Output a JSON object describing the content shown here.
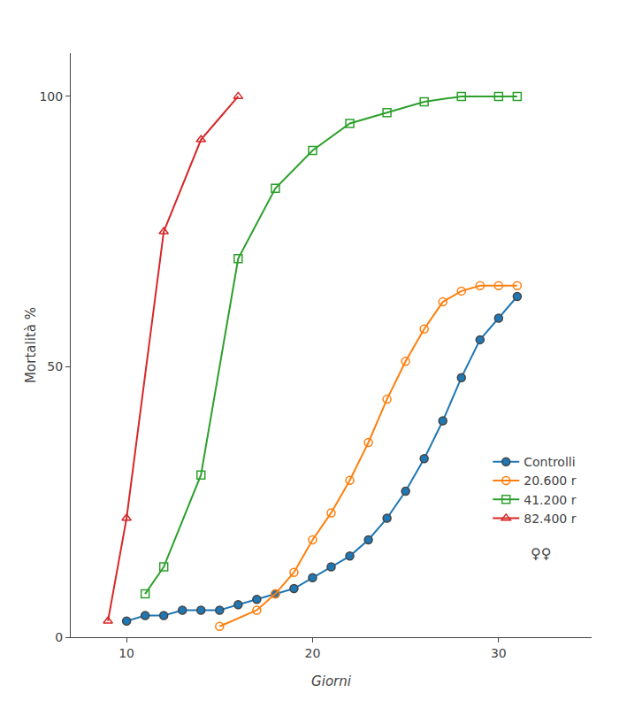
{
  "chart_data": {
    "type": "line",
    "xlabel": "Giorni",
    "ylabel": "Mortalità %",
    "xlim": [
      7,
      35
    ],
    "ylim": [
      0,
      108
    ],
    "xticks": [
      10,
      20,
      30
    ],
    "yticks": [
      0,
      50,
      100
    ],
    "grid": false,
    "legend": "lower right",
    "annotations": [
      "♀♀"
    ],
    "series": [
      {
        "name": "Controlli",
        "marker": "circle",
        "x": [
          10,
          11,
          12,
          13,
          14,
          15,
          16,
          17,
          18,
          19,
          20,
          21,
          22,
          23,
          24,
          25,
          26,
          27,
          28,
          29,
          30,
          31
        ],
        "values": [
          3,
          4,
          4,
          5,
          5,
          5,
          6,
          7,
          8,
          9,
          11,
          13,
          15,
          18,
          22,
          27,
          33,
          40,
          48,
          55,
          59,
          63
        ]
      },
      {
        "name": "20.600 r",
        "marker": "circle-open",
        "x": [
          15,
          17,
          18,
          19,
          20,
          21,
          22,
          23,
          24,
          25,
          26,
          27,
          28,
          29,
          30,
          31
        ],
        "values": [
          2,
          5,
          8,
          12,
          18,
          23,
          29,
          36,
          44,
          51,
          57,
          62,
          64,
          65,
          65,
          65
        ]
      },
      {
        "name": "41.200 r",
        "marker": "square-open",
        "x": [
          11,
          12,
          14,
          16,
          18,
          20,
          22,
          24,
          26,
          28,
          30,
          31
        ],
        "values": [
          8,
          13,
          30,
          70,
          83,
          90,
          95,
          97,
          99,
          100,
          100,
          100
        ]
      },
      {
        "name": "82.400 r",
        "marker": "triangle-up-open",
        "x": [
          9,
          10,
          12,
          14,
          16
        ],
        "values": [
          3,
          22,
          75,
          92,
          100
        ]
      }
    ]
  }
}
